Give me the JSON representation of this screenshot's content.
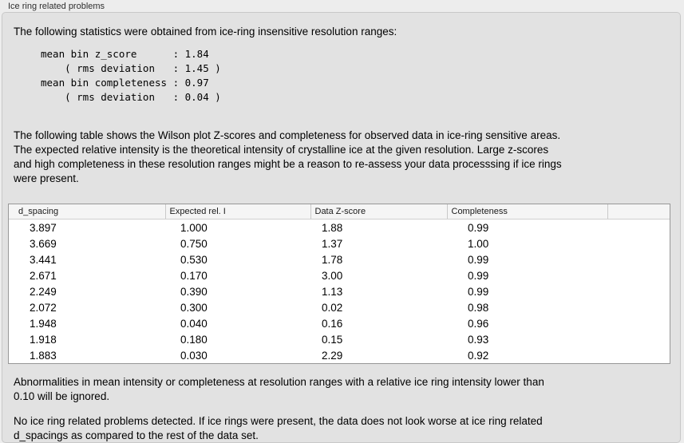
{
  "group": {
    "title": "Ice ring related problems"
  },
  "intro": "The following statistics were obtained from ice-ring insensitive resolution ranges:",
  "stats": {
    "block": "mean bin z_score      : 1.84\n    ( rms deviation   : 1.45 )\nmean bin completeness : 0.97\n    ( rms deviation   : 0.04 )",
    "mean_bin_z_score": "1.84",
    "z_score_rms_deviation": "1.45",
    "mean_bin_completeness": "0.97",
    "completeness_rms_deviation": "0.04"
  },
  "description": "The following table shows the Wilson plot Z-scores and completeness for observed data in ice-ring sensitive areas.\nThe expected relative intensity is the theoretical intensity of crystalline ice at the given resolution. Large z-scores\nand high completeness in these resolution ranges might be a reason to re-assess your data processsing if ice rings\nwere present.",
  "table": {
    "columns": [
      "d_spacing",
      "Expected rel. I",
      "Data Z-score",
      "Completeness",
      ""
    ],
    "rows": [
      [
        "3.897",
        "1.000",
        "1.88",
        "0.99"
      ],
      [
        "3.669",
        "0.750",
        "1.37",
        "1.00"
      ],
      [
        "3.441",
        "0.530",
        "1.78",
        "0.99"
      ],
      [
        "2.671",
        "0.170",
        "3.00",
        "0.99"
      ],
      [
        "2.249",
        "0.390",
        "1.13",
        "0.99"
      ],
      [
        "2.072",
        "0.300",
        "0.02",
        "0.98"
      ],
      [
        "1.948",
        "0.040",
        "0.16",
        "0.96"
      ],
      [
        "1.918",
        "0.180",
        "0.15",
        "0.93"
      ],
      [
        "1.883",
        "0.030",
        "2.29",
        "0.92"
      ]
    ]
  },
  "note_ignore": "Abnormalities in mean intensity or completeness at resolution ranges with a relative ice ring intensity lower than\n0.10 will be ignored.",
  "conclusion": "No ice ring related problems detected. If ice rings were present, the data does not look worse at ice ring related\nd_spacings as compared to the rest of the data set."
}
